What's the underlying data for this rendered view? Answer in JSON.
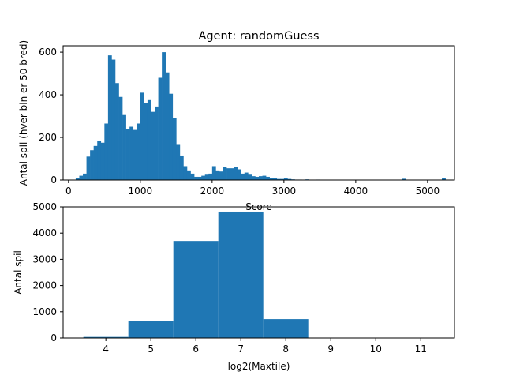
{
  "chart_data": [
    {
      "type": "bar",
      "title": "Agent: randomGuess",
      "xlabel": "Score",
      "ylabel": "Antal spil (hver bin er 50 bred)",
      "bin_width": 50,
      "bin_start": 100,
      "xlim": [
        -75,
        5375
      ],
      "ylim": [
        0,
        630
      ],
      "xticks": [
        0,
        1000,
        2000,
        3000,
        4000,
        5000
      ],
      "yticks": [
        0,
        200,
        400,
        600
      ],
      "grid": false,
      "color": "#1f77b4",
      "values": [
        10,
        20,
        30,
        110,
        140,
        160,
        185,
        175,
        265,
        585,
        565,
        455,
        390,
        305,
        240,
        250,
        235,
        265,
        410,
        360,
        375,
        320,
        345,
        480,
        600,
        505,
        405,
        290,
        165,
        115,
        65,
        45,
        30,
        15,
        15,
        20,
        25,
        30,
        65,
        45,
        40,
        60,
        55,
        55,
        60,
        50,
        30,
        35,
        25,
        18,
        15,
        18,
        20,
        15,
        10,
        8,
        5,
        5,
        8,
        5,
        3,
        2,
        2,
        1,
        3,
        1,
        1,
        2,
        1,
        1,
        1,
        1,
        1,
        1,
        1,
        1,
        1,
        1,
        1,
        1,
        1,
        1,
        1,
        1,
        1,
        1,
        1,
        1,
        1,
        1,
        1,
        6,
        0,
        0,
        0,
        0,
        0,
        0,
        0,
        0,
        1,
        0,
        10
      ]
    },
    {
      "type": "bar",
      "title": "",
      "xlabel": "log2(Maxtile)",
      "ylabel": "Antal spil",
      "categories": [
        4,
        5,
        6,
        7,
        8,
        9,
        10,
        11
      ],
      "values": [
        40,
        660,
        3700,
        4820,
        720,
        0,
        0,
        0
      ],
      "xlim": [
        3.05,
        11.75
      ],
      "ylim": [
        0,
        5000
      ],
      "xticks": [
        4,
        5,
        6,
        7,
        8,
        9,
        10,
        11
      ],
      "yticks": [
        0,
        1000,
        2000,
        3000,
        4000,
        5000
      ],
      "grid": false,
      "color": "#1f77b4"
    }
  ]
}
